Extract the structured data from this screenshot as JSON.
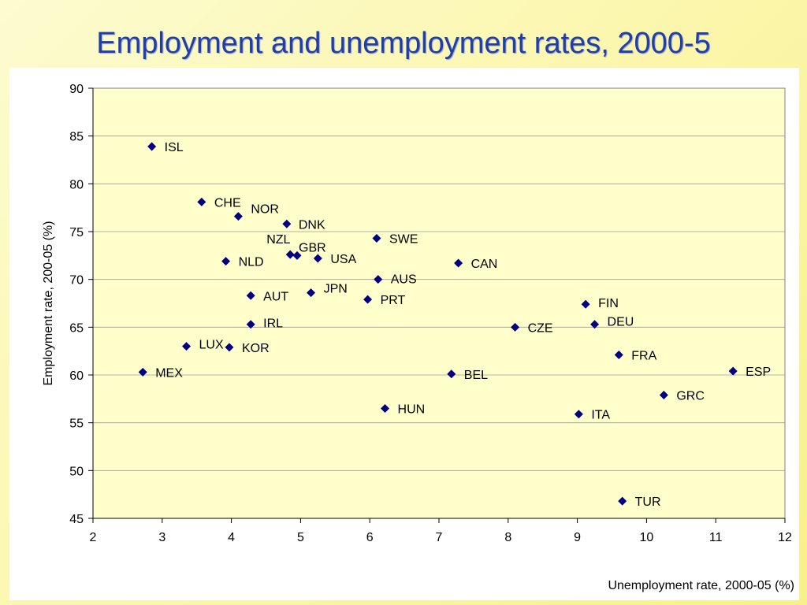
{
  "slide": {
    "title": "Employment and unemployment rates, 2000-5"
  },
  "chart_data": {
    "type": "scatter",
    "title": "",
    "xlabel": "Unemployment rate, 2000-05 (%)",
    "ylabel": "Employment rate, 200-05 (%)",
    "xlim": [
      2,
      12
    ],
    "ylim": [
      45,
      90
    ],
    "xticks": [
      2,
      3,
      4,
      5,
      6,
      7,
      8,
      9,
      10,
      11,
      12
    ],
    "yticks": [
      45,
      50,
      55,
      60,
      65,
      70,
      75,
      80,
      85,
      90
    ],
    "grid": "horizontal",
    "plot_background": "#ffffcc",
    "marker_color": "#000080",
    "points": [
      {
        "label": "ISL",
        "x": 2.85,
        "y": 83.9
      },
      {
        "label": "CHE",
        "x": 3.57,
        "y": 78.1
      },
      {
        "label": "NOR",
        "x": 4.1,
        "y": 76.6
      },
      {
        "label": "DNK",
        "x": 4.8,
        "y": 75.8
      },
      {
        "label": "NZL",
        "x": 4.85,
        "y": 72.6
      },
      {
        "label": "GBR",
        "x": 4.95,
        "y": 72.5
      },
      {
        "label": "USA",
        "x": 5.25,
        "y": 72.2
      },
      {
        "label": "NLD",
        "x": 3.92,
        "y": 71.9
      },
      {
        "label": "SWE",
        "x": 6.1,
        "y": 74.3
      },
      {
        "label": "CAN",
        "x": 7.28,
        "y": 71.7
      },
      {
        "label": "AUS",
        "x": 6.12,
        "y": 70.0
      },
      {
        "label": "AUT",
        "x": 4.28,
        "y": 68.3
      },
      {
        "label": "JPN",
        "x": 5.15,
        "y": 68.6
      },
      {
        "label": "PRT",
        "x": 5.97,
        "y": 67.9
      },
      {
        "label": "FIN",
        "x": 9.12,
        "y": 67.4
      },
      {
        "label": "DEU",
        "x": 9.25,
        "y": 65.3
      },
      {
        "label": "IRL",
        "x": 4.28,
        "y": 65.3
      },
      {
        "label": "CZE",
        "x": 8.1,
        "y": 65.0
      },
      {
        "label": "LUX",
        "x": 3.35,
        "y": 63.0
      },
      {
        "label": "KOR",
        "x": 3.97,
        "y": 62.9
      },
      {
        "label": "FRA",
        "x": 9.6,
        "y": 62.1
      },
      {
        "label": "MEX",
        "x": 2.72,
        "y": 60.3
      },
      {
        "label": "BEL",
        "x": 7.18,
        "y": 60.1
      },
      {
        "label": "ESP",
        "x": 11.25,
        "y": 60.4
      },
      {
        "label": "GRC",
        "x": 10.25,
        "y": 57.9
      },
      {
        "label": "HUN",
        "x": 6.22,
        "y": 56.5
      },
      {
        "label": "ITA",
        "x": 9.02,
        "y": 55.9
      },
      {
        "label": "TUR",
        "x": 9.65,
        "y": 46.8
      }
    ]
  }
}
